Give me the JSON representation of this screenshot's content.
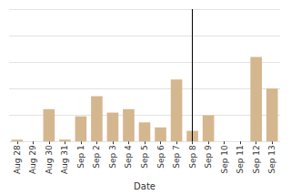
{
  "chart_data": {
    "type": "bar",
    "x_label": "Date",
    "categories": [
      "Aug 28",
      "Aug 29",
      "Aug 30",
      "Aug 31",
      "Sep 1",
      "Sep 2",
      "Sep 3",
      "Sep 4",
      "Sep 5",
      "Sep 6",
      "Sep 7",
      "Sep 8",
      "Sep 9",
      "Sep 10",
      "Sep 11",
      "Sep 12",
      "Sep 13"
    ],
    "values": [
      0.07,
      0,
      1.22,
      0.07,
      0.95,
      1.71,
      1.09,
      1.22,
      0.72,
      0.53,
      2.34,
      0.4,
      0.99,
      0,
      0,
      3.19,
      2.0
    ],
    "color": "#d4b78f",
    "ylim": [
      0,
      5
    ],
    "yticks": [
      0,
      1,
      2,
      3,
      4,
      5
    ],
    "grid": true,
    "tick_labels": "x",
    "vline": "Sep 8"
  }
}
